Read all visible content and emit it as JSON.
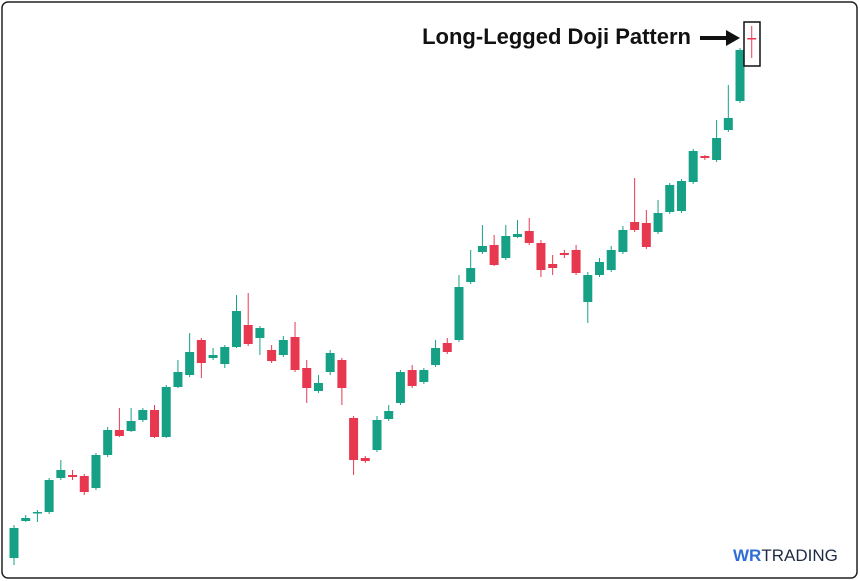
{
  "chart_data": {
    "type": "candlestick",
    "annotation": "Long-Legged Doji Pattern",
    "watermark": {
      "brand": "WR",
      "rest": "TRADING"
    },
    "up_color": "#16a085",
    "down_color": "#e8384f",
    "ylim": [
      0,
      581
    ],
    "open": [
      23,
      60,
      68,
      69,
      103,
      106,
      105,
      93,
      126,
      151,
      150,
      161,
      171,
      144,
      194,
      206,
      241,
      223,
      217,
      234,
      256,
      243,
      231,
      226,
      244,
      213,
      190,
      209,
      221,
      163,
      123,
      131,
      162,
      178,
      211,
      199,
      216,
      238,
      241,
      299,
      329,
      336,
      323,
      344,
      350,
      338,
      317,
      328,
      331,
      279,
      306,
      311,
      329,
      359,
      358,
      349,
      369,
      370,
      399,
      425,
      421,
      451,
      480,
      543
    ],
    "high": [
      56,
      66,
      71,
      103,
      121,
      111,
      107,
      128,
      154,
      173,
      173,
      173,
      176,
      196,
      221,
      248,
      243,
      233,
      236,
      286,
      288,
      255,
      236,
      245,
      259,
      221,
      206,
      231,
      223,
      165,
      125,
      165,
      176,
      211,
      216,
      213,
      241,
      243,
      306,
      331,
      356,
      346,
      356,
      361,
      363,
      341,
      326,
      331,
      336,
      309,
      323,
      335,
      355,
      403,
      371,
      381,
      398,
      402,
      432,
      426,
      461,
      496,
      533,
      555
    ],
    "low": [
      16,
      59,
      59,
      67,
      101,
      101,
      86,
      91,
      124,
      144,
      149,
      159,
      143,
      143,
      193,
      204,
      203,
      221,
      213,
      233,
      235,
      226,
      218,
      224,
      209,
      178,
      188,
      206,
      176,
      106,
      118,
      129,
      160,
      176,
      193,
      197,
      214,
      227,
      239,
      297,
      327,
      315,
      321,
      343,
      336,
      304,
      306,
      323,
      306,
      258,
      304,
      309,
      327,
      349,
      332,
      347,
      367,
      368,
      397,
      421,
      419,
      449,
      478,
      523
    ],
    "close": [
      53,
      63,
      69,
      101,
      111,
      104,
      89,
      126,
      151,
      145,
      160,
      171,
      144,
      194,
      209,
      229,
      218,
      226,
      234,
      270,
      237,
      253,
      220,
      241,
      211,
      193,
      198,
      228,
      193,
      121,
      120,
      161,
      170,
      209,
      195,
      211,
      233,
      229,
      294,
      313,
      335,
      316,
      345,
      347,
      338,
      311,
      313,
      326,
      308,
      306,
      319,
      331,
      351,
      351,
      334,
      368,
      396,
      400,
      430,
      423,
      443,
      463,
      531,
      542
    ]
  }
}
